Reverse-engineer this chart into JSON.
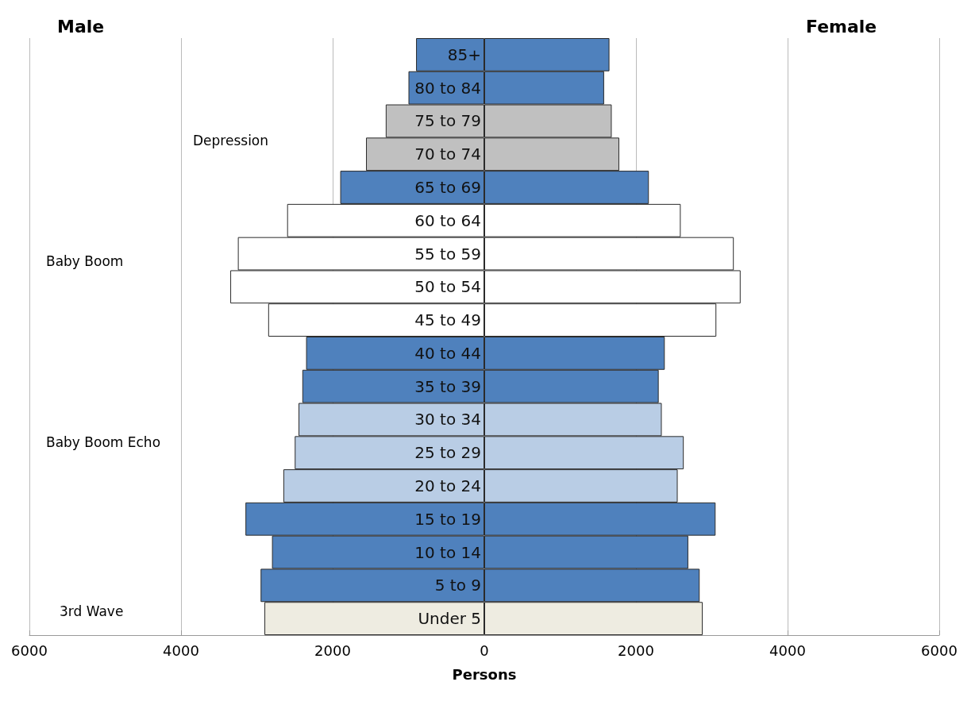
{
  "chart_data": {
    "type": "bar",
    "orientation": "horizontal",
    "xlabel": "Persons",
    "categories": [
      "85+",
      "80 to 84",
      "75 to 79",
      "70 to 74",
      "65 to 69",
      "60 to 64",
      "55 to 59",
      "50 to 54",
      "45 to 49",
      "40 to 44",
      "35 to 39",
      "30 to 34",
      "25 to 29",
      "20 to 24",
      "15 to 19",
      "10 to 14",
      "5 to 9",
      "Under 5"
    ],
    "series": [
      {
        "values": [
          -900,
          -1000,
          -1300,
          -1560,
          -1900,
          -2600,
          -3250,
          -3350,
          -2850,
          -2350,
          -2400,
          -2450,
          -2500,
          -2650,
          -3150,
          -2800,
          -2950,
          -2900
        ],
        "colors": [
          "#4f81bd",
          "#4f81bd",
          "#c0c0c0",
          "#c0c0c0",
          "#4f81bd",
          "#ffffff",
          "#ffffff",
          "#ffffff",
          "#ffffff",
          "#4f81bd",
          "#4f81bd",
          "#b9cde5",
          "#b9cde5",
          "#b9cde5",
          "#4f81bd",
          "#4f81bd",
          "#4f81bd",
          "#eeece1"
        ]
      },
      {
        "values": [
          1650,
          1580,
          1680,
          1780,
          2170,
          2590,
          3290,
          3380,
          3060,
          2380,
          2300,
          2340,
          2630,
          2550,
          3050,
          2690,
          2840,
          2880
        ],
        "colors": [
          "#4f81bd",
          "#4f81bd",
          "#c0c0c0",
          "#c0c0c0",
          "#4f81bd",
          "#ffffff",
          "#ffffff",
          "#ffffff",
          "#ffffff",
          "#4f81bd",
          "#4f81bd",
          "#b9cde5",
          "#b9cde5",
          "#b9cde5",
          "#4f81bd",
          "#4f81bd",
          "#4f81bd",
          "#eeece1"
        ]
      }
    ],
    "xlim": [
      -6000,
      6000
    ],
    "xticks": [
      {
        "value": -6000,
        "label": "6000"
      },
      {
        "value": -4000,
        "label": "4000"
      },
      {
        "value": -2000,
        "label": "2000"
      },
      0,
      2000,
      4000,
      6000
    ],
    "grid": "x",
    "stacked": true,
    "annotations": [
      "Male",
      "Female",
      "Depression",
      "Baby Boom",
      "Baby Boom Echo",
      "3rd Wave"
    ]
  }
}
